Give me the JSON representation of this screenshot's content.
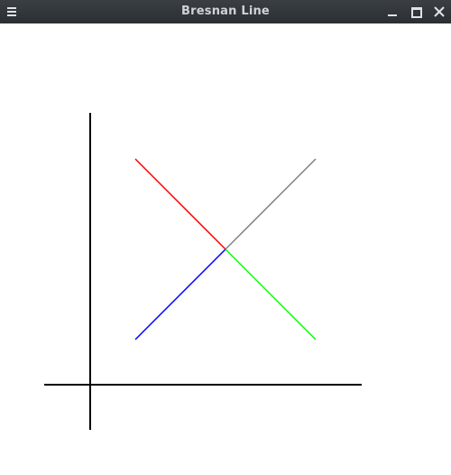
{
  "window": {
    "title": "Bresnan Line",
    "controls": {
      "menu_icon": "hamburger-menu-icon",
      "minimize_icon": "minimize-icon",
      "maximize_icon": "maximize-icon",
      "close_icon": "close-icon"
    }
  },
  "colors": {
    "axis": "#000000",
    "line_red": "#ff0000",
    "line_gray": "#808080",
    "line_blue": "#0000ff",
    "line_green": "#00ff00"
  }
}
